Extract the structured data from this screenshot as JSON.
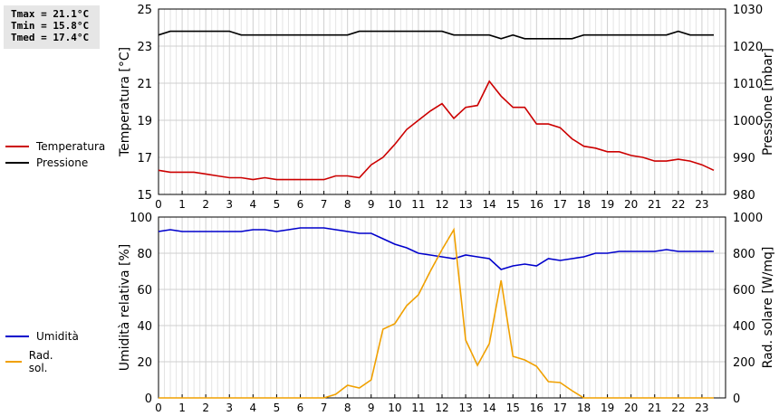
{
  "stats": {
    "tmax": "Tmax = 21.1°C",
    "tmin": "Tmin = 15.8°C",
    "tmed": "Tmed = 17.4°C"
  },
  "legend_top": [
    {
      "label": "Temperatura",
      "color": "#cc0000"
    },
    {
      "label": "Pressione",
      "color": "#000000"
    }
  ],
  "legend_bottom": [
    {
      "label": "Umidità",
      "color": "#0000cc"
    },
    {
      "label": "Rad. sol.",
      "color": "#f0a000"
    }
  ],
  "chart_data": [
    {
      "type": "line",
      "xlabel": "",
      "ylabel": "Temperatura [°C]",
      "ylabel_right": "Pressione [mbar]",
      "xlim": [
        0,
        24
      ],
      "xticks": [
        0,
        1,
        2,
        3,
        4,
        5,
        6,
        7,
        8,
        9,
        10,
        11,
        12,
        13,
        14,
        15,
        16,
        17,
        18,
        19,
        20,
        21,
        22,
        23
      ],
      "ylim": [
        15,
        25
      ],
      "yticks": [
        15,
        17,
        19,
        21,
        23,
        25
      ],
      "ylim_right": [
        980,
        1030
      ],
      "yticks_right": [
        980,
        990,
        1000,
        1010,
        1020,
        1030
      ],
      "grid": true,
      "x": [
        0,
        0.5,
        1,
        1.5,
        2,
        2.5,
        3,
        3.5,
        4,
        4.5,
        5,
        5.5,
        6,
        6.5,
        7,
        7.5,
        8,
        8.5,
        9,
        9.5,
        10,
        10.5,
        11,
        11.5,
        12,
        12.5,
        13,
        13.5,
        14,
        14.5,
        15,
        15.5,
        16,
        16.5,
        17,
        17.5,
        18,
        18.5,
        19,
        19.5,
        20,
        20.5,
        21,
        21.5,
        22,
        22.5,
        23,
        23.5
      ],
      "series": [
        {
          "name": "Temperatura",
          "axis": "left",
          "color": "#cc0000",
          "values": [
            16.3,
            16.2,
            16.2,
            16.2,
            16.1,
            16.0,
            15.9,
            15.9,
            15.8,
            15.9,
            15.8,
            15.8,
            15.8,
            15.8,
            15.8,
            16.0,
            16.0,
            15.9,
            16.6,
            17.0,
            17.7,
            18.5,
            19.0,
            19.5,
            19.9,
            19.1,
            19.7,
            19.8,
            21.1,
            20.3,
            19.7,
            19.7,
            18.8,
            18.8,
            18.6,
            18.0,
            17.6,
            17.5,
            17.3,
            17.3,
            17.1,
            17.0,
            16.8,
            16.8,
            16.9,
            16.8,
            16.6,
            16.3
          ]
        },
        {
          "name": "Pressione",
          "axis": "right",
          "color": "#000000",
          "values": [
            1023,
            1024,
            1024,
            1024,
            1024,
            1024,
            1024,
            1023,
            1023,
            1023,
            1023,
            1023,
            1023,
            1023,
            1023,
            1023,
            1023,
            1024,
            1024,
            1024,
            1024,
            1024,
            1024,
            1024,
            1024,
            1023,
            1023,
            1023,
            1023,
            1022,
            1023,
            1022,
            1022,
            1022,
            1022,
            1022,
            1023,
            1023,
            1023,
            1023,
            1023,
            1023,
            1023,
            1023,
            1024,
            1023,
            1023,
            1023
          ]
        }
      ]
    },
    {
      "type": "line",
      "xlabel": "",
      "ylabel": "Umidità relativa [%]",
      "ylabel_right": "Rad. solare [W/mq]",
      "xlim": [
        0,
        24
      ],
      "xticks": [
        0,
        1,
        2,
        3,
        4,
        5,
        6,
        7,
        8,
        9,
        10,
        11,
        12,
        13,
        14,
        15,
        16,
        17,
        18,
        19,
        20,
        21,
        22,
        23
      ],
      "ylim": [
        0,
        100
      ],
      "yticks": [
        0,
        20,
        40,
        60,
        80,
        100
      ],
      "ylim_right": [
        0,
        1000
      ],
      "yticks_right": [
        0,
        200,
        400,
        600,
        800,
        1000
      ],
      "grid": true,
      "x": [
        0,
        0.5,
        1,
        1.5,
        2,
        2.5,
        3,
        3.5,
        4,
        4.5,
        5,
        5.5,
        6,
        6.5,
        7,
        7.5,
        8,
        8.5,
        9,
        9.5,
        10,
        10.5,
        11,
        11.5,
        12,
        12.5,
        13,
        13.5,
        14,
        14.5,
        15,
        15.5,
        16,
        16.5,
        17,
        17.5,
        18,
        18.5,
        19,
        19.5,
        20,
        20.5,
        21,
        21.5,
        22,
        22.5,
        23,
        23.5
      ],
      "series": [
        {
          "name": "Umidità",
          "axis": "left",
          "color": "#0000cc",
          "values": [
            92,
            93,
            92,
            92,
            92,
            92,
            92,
            92,
            93,
            93,
            92,
            93,
            94,
            94,
            94,
            93,
            92,
            91,
            91,
            88,
            85,
            83,
            80,
            79,
            78,
            77,
            79,
            78,
            77,
            71,
            73,
            74,
            73,
            77,
            76,
            77,
            78,
            80,
            80,
            81,
            81,
            81,
            81,
            82,
            81,
            81,
            81,
            81
          ]
        },
        {
          "name": "Rad. sol.",
          "axis": "right",
          "color": "#f0a000",
          "values": [
            0,
            0,
            0,
            0,
            0,
            0,
            0,
            0,
            0,
            0,
            0,
            0,
            0,
            0,
            0,
            20,
            70,
            55,
            100,
            380,
            410,
            510,
            570,
            700,
            820,
            930,
            320,
            180,
            300,
            650,
            230,
            210,
            175,
            90,
            85,
            40,
            0,
            0,
            0,
            0,
            0,
            0,
            0,
            0,
            0,
            0,
            0,
            0
          ]
        }
      ]
    }
  ]
}
